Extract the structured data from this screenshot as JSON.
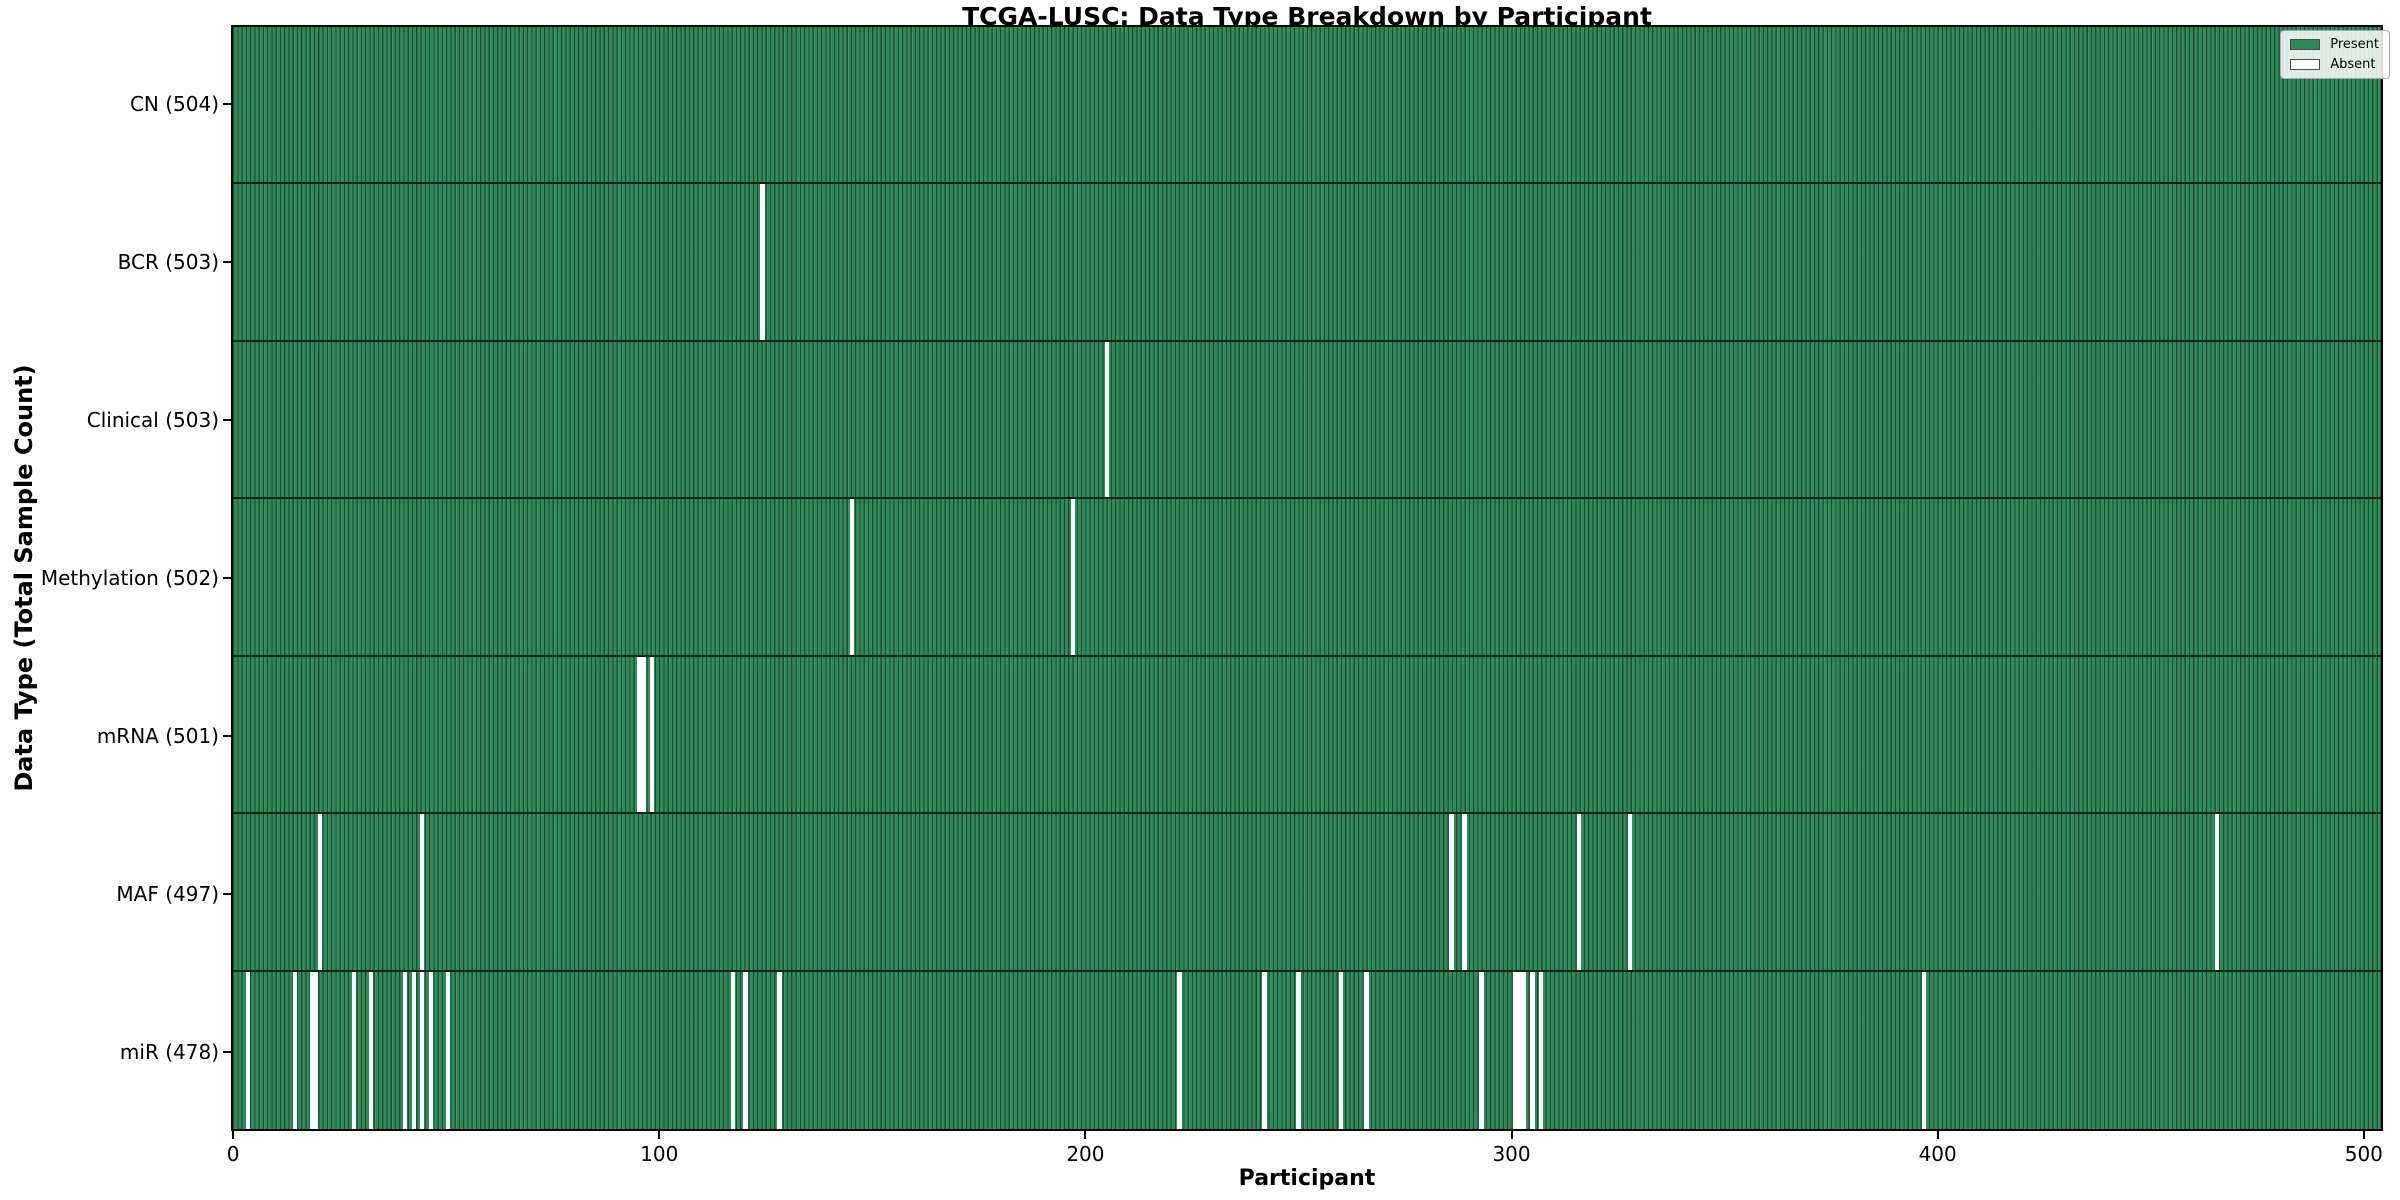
{
  "chart_data": {
    "type": "heatmap",
    "title": "TCGA-LUSC: Data Type Breakdown by Participant",
    "xlabel": "Participant",
    "ylabel": "Data Type (Total Sample Count)",
    "n_participants": 504,
    "x_ticks": [
      0,
      100,
      200,
      300,
      400,
      500
    ],
    "xlim": [
      -0.5,
      504.5
    ],
    "grid": false,
    "legend_position": "upper right",
    "legend": [
      {
        "label": "Present",
        "color": "#2e8b57"
      },
      {
        "label": "Absent",
        "color": "#ffffff"
      }
    ],
    "colors": {
      "present": "#2e8b57",
      "absent": "#ffffff",
      "bar_edge": "#0b2418"
    },
    "rows": [
      {
        "name": "CN",
        "label": "CN (504)",
        "total": 504,
        "absent_participants": []
      },
      {
        "name": "BCR",
        "label": "BCR (503)",
        "total": 503,
        "absent_participants": [
          124
        ]
      },
      {
        "name": "Clinical",
        "label": "Clinical (503)",
        "total": 503,
        "absent_participants": [
          205
        ]
      },
      {
        "name": "Methylation",
        "label": "Methylation (502)",
        "total": 502,
        "absent_participants": [
          145,
          197
        ]
      },
      {
        "name": "mRNA",
        "label": "mRNA (501)",
        "total": 501,
        "absent_participants": [
          95,
          96,
          98
        ]
      },
      {
        "name": "MAF",
        "label": "MAF (497)",
        "total": 497,
        "absent_participants": [
          20,
          44,
          286,
          289,
          316,
          328,
          466
        ]
      },
      {
        "name": "miR",
        "label": "miR (478)",
        "total": 478,
        "absent_participants": [
          3,
          14,
          18,
          19,
          28,
          32,
          40,
          42,
          44,
          46,
          50,
          117,
          120,
          128,
          222,
          242,
          250,
          260,
          266,
          293,
          301,
          302,
          303,
          305,
          307,
          397
        ]
      }
    ]
  }
}
